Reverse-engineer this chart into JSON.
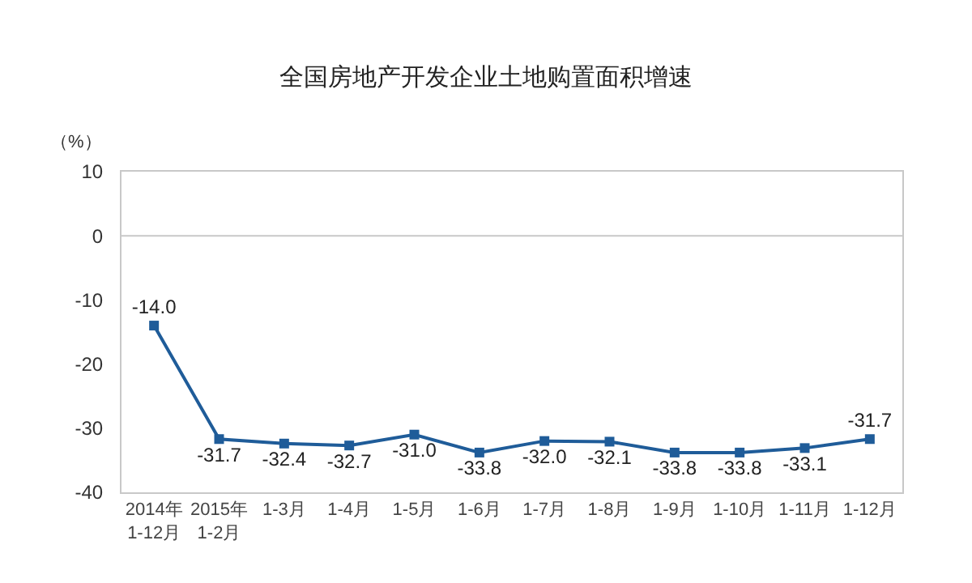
{
  "chart_data": {
    "type": "line",
    "title": "全国房地产开发企业土地购置面积增速",
    "ylabel": "（%）",
    "categories": [
      "2014年\n1-12月",
      "2015年\n1-2月",
      "1-3月",
      "1-4月",
      "1-5月",
      "1-6月",
      "1-7月",
      "1-8月",
      "1-9月",
      "1-10月",
      "1-11月",
      "1-12月"
    ],
    "series": [
      {
        "color": "#1f5c99",
        "values": [
          -14.0,
          -31.7,
          -32.4,
          -32.7,
          -31.0,
          -33.8,
          -32.0,
          -32.1,
          -33.8,
          -33.8,
          -33.1,
          -31.7
        ],
        "value_labels": [
          "-14.0",
          "-31.7",
          "-32.4",
          "-32.7",
          "-31.0",
          "-33.8",
          "-32.0",
          "-32.1",
          "-33.8",
          "-33.8",
          "-33.1",
          "-31.7"
        ]
      }
    ],
    "ylim": [
      -40,
      10
    ],
    "yticks": [
      -40,
      -30,
      -20,
      -10,
      0,
      10
    ],
    "ref_lines": [
      {
        "axis": "y",
        "value": 0,
        "color": "#c8c8c8"
      }
    ],
    "marker": "square",
    "line_style": "solid"
  }
}
